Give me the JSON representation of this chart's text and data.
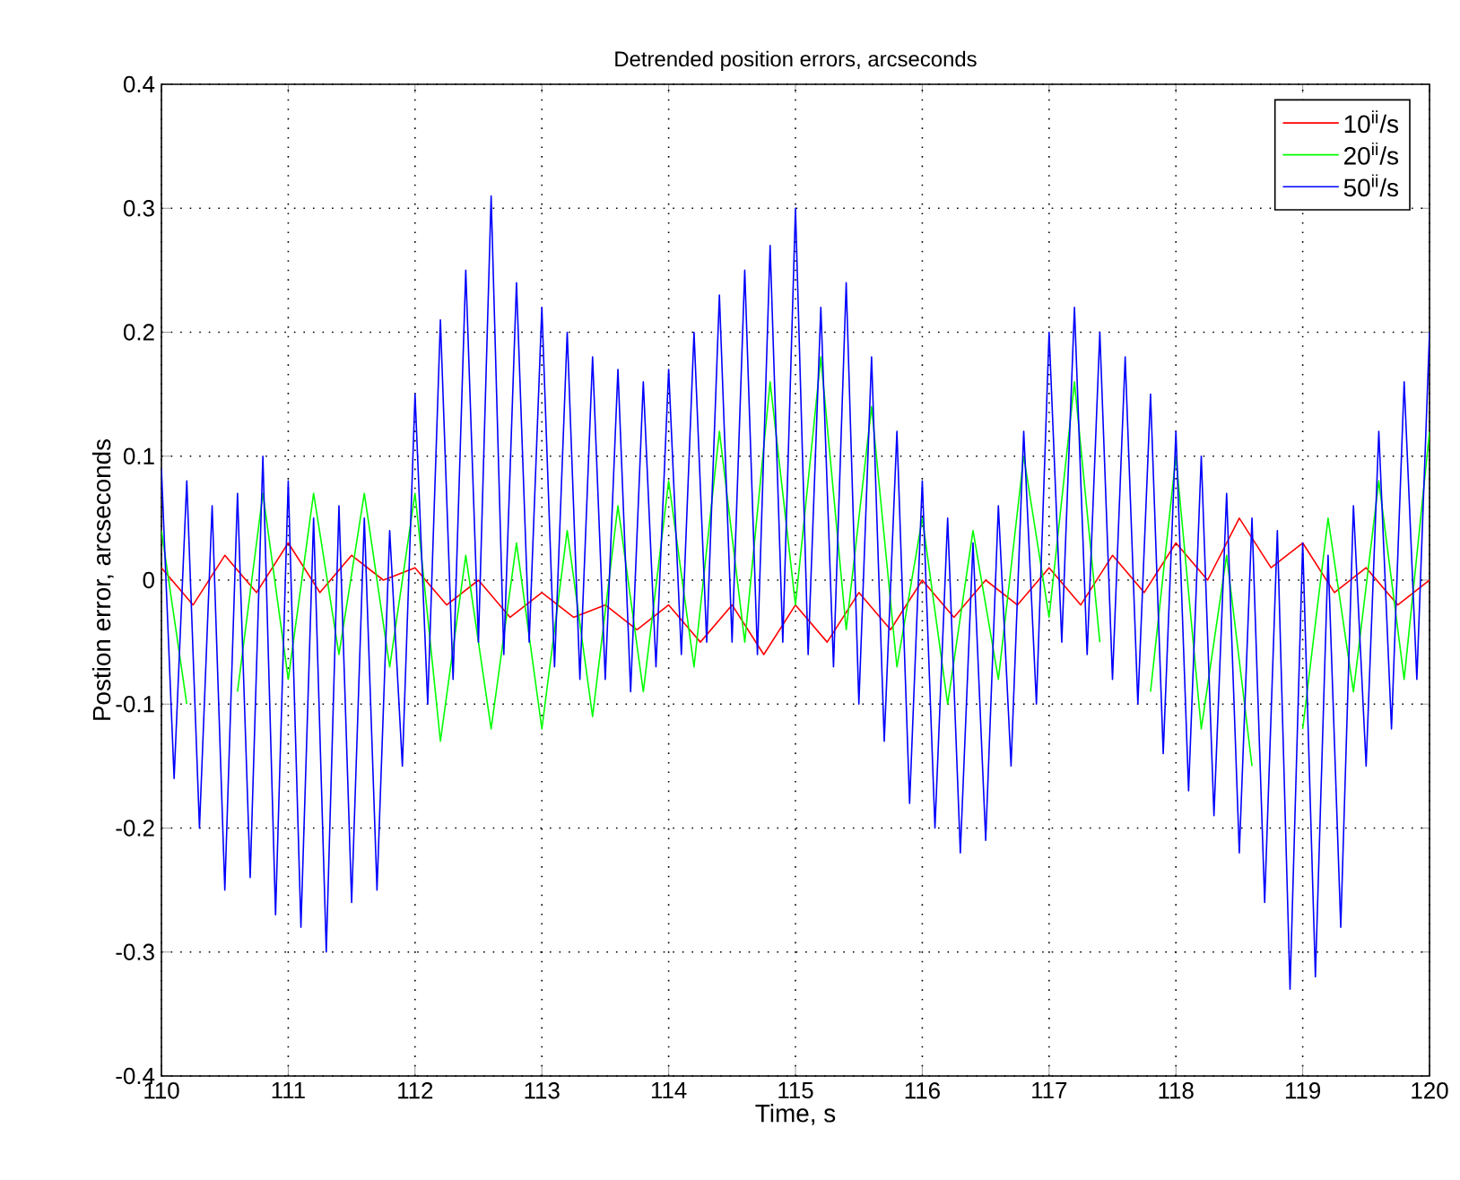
{
  "chart_data": {
    "type": "line",
    "title": "Detrended position errors, arcseconds",
    "xlabel": "Time, s",
    "ylabel": "Postion error, arcseconds",
    "xlim": [
      110,
      120
    ],
    "ylim": [
      -0.4,
      0.4
    ],
    "xticks": [
      110,
      111,
      112,
      113,
      114,
      115,
      116,
      117,
      118,
      119,
      120
    ],
    "yticks": [
      -0.4,
      -0.3,
      -0.2,
      -0.1,
      0,
      0.1,
      0.2,
      0.3,
      0.4
    ],
    "grid": true,
    "legend": "top right",
    "line_style": "solid",
    "marker": "none",
    "series": [
      {
        "name": "10$^{ii}$/s",
        "color": "#ff0000",
        "x": [
          110.0,
          110.25,
          110.5,
          110.75,
          111.0,
          111.25,
          111.5,
          111.75,
          112.0,
          112.25,
          112.5,
          112.75,
          113.0,
          113.25,
          113.5,
          113.75,
          114.0,
          114.25,
          114.5,
          114.75,
          115.0,
          115.25,
          115.5,
          115.75,
          116.0,
          116.25,
          116.5,
          116.75,
          117.0,
          117.25,
          117.5,
          117.75,
          118.0,
          118.25,
          118.5,
          118.75,
          119.0,
          119.25,
          119.5,
          119.75,
          120.0
        ],
        "values": [
          0.01,
          -0.02,
          0.02,
          -0.01,
          0.03,
          -0.01,
          0.02,
          0.0,
          0.01,
          -0.02,
          0.0,
          -0.03,
          -0.01,
          -0.03,
          -0.02,
          -0.04,
          -0.02,
          -0.05,
          -0.02,
          -0.06,
          -0.02,
          -0.05,
          -0.01,
          -0.04,
          0.0,
          -0.03,
          0.0,
          -0.02,
          0.01,
          -0.02,
          0.02,
          -0.01,
          0.03,
          0.0,
          0.05,
          0.01,
          0.03,
          -0.01,
          0.01,
          -0.02,
          0.0
        ]
      },
      {
        "name": "20$^{ii}$/s",
        "color": "#00ff00",
        "x": [
          110.0,
          110.2,
          110.4,
          110.6,
          110.8,
          111.0,
          111.2,
          111.4,
          111.6,
          111.8,
          112.0,
          112.2,
          112.4,
          112.6,
          112.8,
          113.0,
          113.2,
          113.4,
          113.6,
          113.8,
          114.0,
          114.2,
          114.4,
          114.6,
          114.8,
          115.0,
          115.2,
          115.4,
          115.6,
          115.8,
          116.0,
          116.2,
          116.4,
          116.6,
          116.8,
          117.0,
          117.2,
          117.4,
          117.6,
          117.8,
          118.0,
          118.2,
          118.4,
          118.6,
          118.8,
          119.0,
          119.2,
          119.4,
          119.6,
          119.8,
          120.0
        ],
        "values": [
          0.04,
          -0.1,
          null,
          -0.09,
          0.07,
          -0.08,
          0.07,
          -0.06,
          0.07,
          -0.07,
          0.07,
          -0.13,
          0.02,
          -0.12,
          0.03,
          -0.12,
          0.04,
          -0.11,
          0.06,
          -0.09,
          0.08,
          -0.07,
          0.12,
          -0.05,
          0.16,
          -0.02,
          0.18,
          -0.04,
          0.14,
          -0.07,
          0.05,
          -0.1,
          0.04,
          -0.08,
          0.1,
          -0.03,
          0.16,
          -0.05,
          null,
          -0.09,
          0.1,
          -0.12,
          0.02,
          -0.15,
          null,
          -0.12,
          0.05,
          -0.09,
          0.08,
          -0.08,
          0.12
        ]
      },
      {
        "name": "50$^{ii}$/s",
        "color": "#0000ff",
        "x": [
          110.0,
          110.1,
          110.2,
          110.3,
          110.4,
          110.5,
          110.6,
          110.7,
          110.8,
          110.9,
          111.0,
          111.1,
          111.2,
          111.3,
          111.4,
          111.5,
          111.6,
          111.7,
          111.8,
          111.9,
          112.0,
          112.1,
          112.2,
          112.3,
          112.4,
          112.5,
          112.6,
          112.7,
          112.8,
          112.9,
          113.0,
          113.1,
          113.2,
          113.3,
          113.4,
          113.5,
          113.6,
          113.7,
          113.8,
          113.9,
          114.0,
          114.1,
          114.2,
          114.3,
          114.4,
          114.5,
          114.6,
          114.7,
          114.8,
          114.9,
          115.0,
          115.1,
          115.2,
          115.3,
          115.4,
          115.5,
          115.6,
          115.7,
          115.8,
          115.9,
          116.0,
          116.1,
          116.2,
          116.3,
          116.4,
          116.5,
          116.6,
          116.7,
          116.8,
          116.9,
          117.0,
          117.1,
          117.2,
          117.3,
          117.4,
          117.5,
          117.6,
          117.7,
          117.8,
          117.9,
          118.0,
          118.1,
          118.2,
          118.3,
          118.4,
          118.5,
          118.6,
          118.7,
          118.8,
          118.9,
          119.0,
          119.1,
          119.2,
          119.3,
          119.4,
          119.5,
          119.6,
          119.7,
          119.8,
          119.9,
          120.0
        ],
        "values": [
          0.09,
          -0.16,
          0.08,
          -0.2,
          0.06,
          -0.25,
          0.07,
          -0.24,
          0.1,
          -0.27,
          0.08,
          -0.28,
          0.05,
          -0.3,
          0.06,
          -0.26,
          0.05,
          -0.25,
          0.04,
          -0.15,
          0.15,
          -0.1,
          0.21,
          -0.08,
          0.25,
          -0.05,
          0.31,
          -0.06,
          0.24,
          -0.05,
          0.22,
          -0.07,
          0.2,
          -0.08,
          0.18,
          -0.08,
          0.17,
          -0.09,
          0.16,
          -0.07,
          0.17,
          -0.06,
          0.2,
          -0.05,
          0.23,
          -0.05,
          0.25,
          -0.06,
          0.27,
          -0.05,
          0.3,
          -0.06,
          0.22,
          -0.07,
          0.24,
          -0.1,
          0.18,
          -0.13,
          0.12,
          -0.18,
          0.08,
          -0.2,
          0.05,
          -0.22,
          0.03,
          -0.21,
          0.06,
          -0.15,
          0.12,
          -0.1,
          0.2,
          -0.05,
          0.22,
          -0.06,
          0.2,
          -0.08,
          0.18,
          -0.1,
          0.15,
          -0.14,
          0.12,
          -0.17,
          0.1,
          -0.19,
          0.07,
          -0.22,
          0.05,
          -0.26,
          0.04,
          -0.33,
          0.03,
          -0.32,
          0.02,
          -0.28,
          0.06,
          -0.15,
          0.12,
          -0.12,
          0.16,
          -0.08,
          0.2
        ]
      }
    ]
  }
}
